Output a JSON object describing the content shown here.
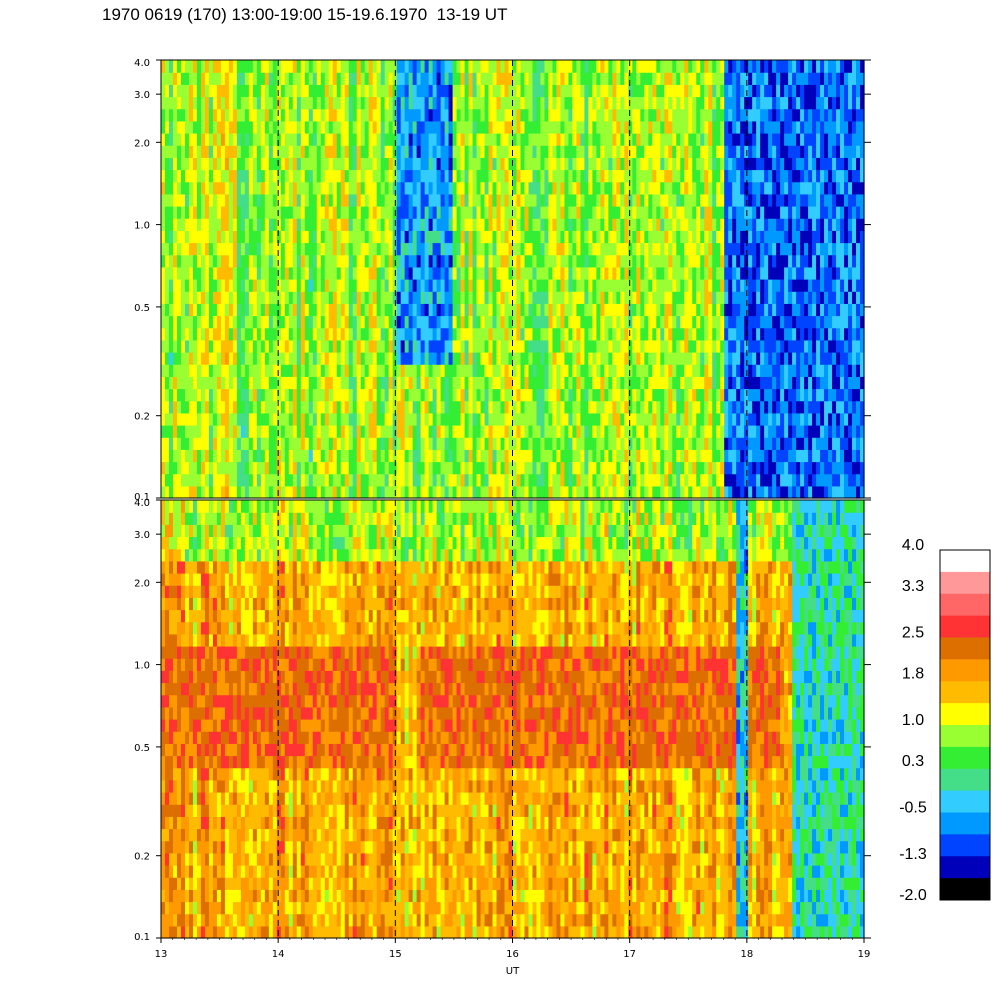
{
  "title": "1970 0619 (170) 13:00-19:00 15-19.6.1970  13-19 UT",
  "chart_data": [
    {
      "type": "heatmap",
      "panel": "upper",
      "title": "",
      "xlabel": "",
      "ylabel": "",
      "y_scale": "log",
      "ylim": [
        0.1,
        4.0
      ],
      "xlim": [
        13,
        19
      ],
      "y_ticks": [
        "4.0",
        "3.0",
        "2.0",
        "1.0",
        "0.5",
        "0.2",
        "0.1"
      ],
      "y_tick_values": [
        4.0,
        3.0,
        2.0,
        1.0,
        0.5,
        0.2,
        0.1
      ],
      "vertical_dashed_lines_x": [
        14,
        15,
        16,
        17,
        18
      ],
      "dominant_level": 0.6,
      "low_value_intervals": [
        {
          "x": [
            15.0,
            15.5
          ],
          "y": [
            0.3,
            4.0
          ],
          "level": -1.0
        },
        {
          "x": [
            17.8,
            19.0
          ],
          "y": [
            0.1,
            4.0
          ],
          "level": -1.2
        }
      ]
    },
    {
      "type": "heatmap",
      "panel": "lower",
      "title": "",
      "xlabel": "UT",
      "ylabel": "",
      "y_scale": "log",
      "ylim": [
        0.1,
        4.0
      ],
      "xlim": [
        13,
        19
      ],
      "y_ticks": [
        "4.0",
        "3.0",
        "2.0",
        "1.0",
        "0.5",
        "0.2",
        "0.1"
      ],
      "y_tick_values": [
        4.0,
        3.0,
        2.0,
        1.0,
        0.5,
        0.2,
        0.1
      ],
      "x_ticks": [
        "13",
        "14",
        "15",
        "16",
        "17",
        "18",
        "19"
      ],
      "x_tick_values": [
        13,
        14,
        15,
        16,
        17,
        18,
        19
      ],
      "vertical_dashed_lines_x": [
        14,
        15,
        16,
        17,
        18
      ],
      "dominant_level": 1.6,
      "peak_band_y": [
        0.4,
        1.2
      ],
      "peak_level": 2.2,
      "low_value_intervals": [
        {
          "x": [
            17.9,
            18.0
          ],
          "y": [
            0.1,
            4.0
          ],
          "level": -0.6
        },
        {
          "x": [
            18.4,
            19.0
          ],
          "y": [
            0.1,
            4.0
          ],
          "level": -0.3
        }
      ]
    }
  ],
  "colorbar": {
    "labels": [
      "4.0",
      "3.3",
      "2.5",
      "1.8",
      "1.0",
      "0.3",
      "-0.5",
      "-1.3",
      "-2.0"
    ],
    "label_values": [
      4.0,
      3.3,
      2.5,
      1.8,
      1.0,
      0.3,
      -0.5,
      -1.3,
      -2.0
    ],
    "colors_top_to_bottom": [
      "#ffffff",
      "#ff9999",
      "#ff6666",
      "#ff3333",
      "#dd6f00",
      "#ff9900",
      "#ffbb00",
      "#ffff00",
      "#99ff33",
      "#33ee33",
      "#44dd88",
      "#33ccff",
      "#0099ff",
      "#0044ff",
      "#0000bb",
      "#000000"
    ]
  }
}
